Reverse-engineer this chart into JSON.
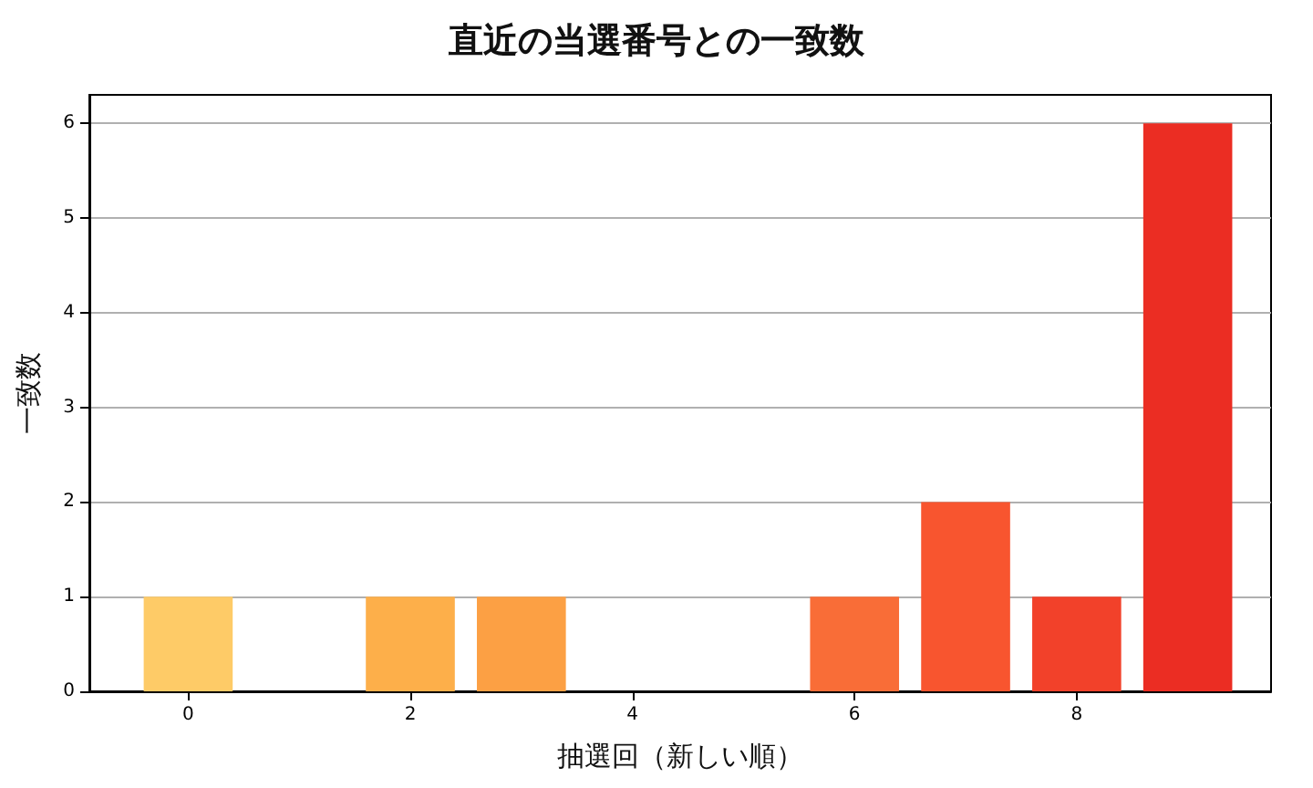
{
  "chart_data": {
    "type": "bar",
    "title": "直近の当選番号との一致数",
    "xlabel": "抽選回（新しい順）",
    "ylabel": "一致数",
    "x": [
      0,
      1,
      2,
      3,
      4,
      5,
      6,
      7,
      8,
      9
    ],
    "values": [
      1,
      0,
      1,
      1,
      0,
      0,
      1,
      2,
      1,
      6
    ],
    "colors": [
      "#fecb67",
      "#febf5a",
      "#fdaf4a",
      "#fca044",
      "#fc8b3d",
      "#fb7a3a",
      "#f96d37",
      "#f8552f",
      "#f2412a",
      "#eb2d23"
    ],
    "xlim": [
      -0.89,
      9.75
    ],
    "xticks": [
      0,
      2,
      4,
      6,
      8
    ],
    "ylim": [
      0,
      6.3
    ],
    "yticks": [
      0,
      1,
      2,
      3,
      4,
      5,
      6
    ],
    "grid": "y"
  }
}
